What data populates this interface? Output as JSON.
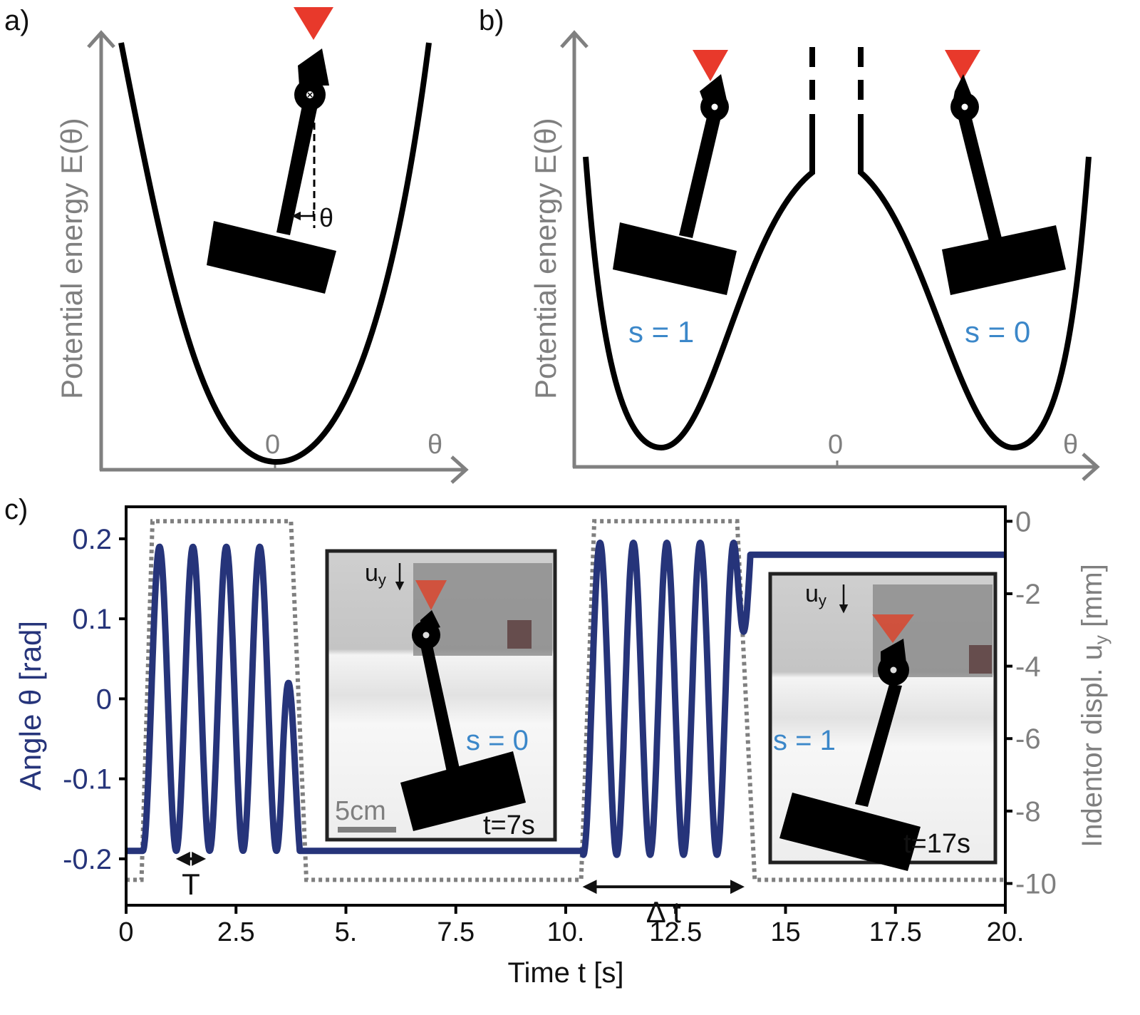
{
  "panels": {
    "a": {
      "label": "a)",
      "ylabel": "Potential energy E(θ)",
      "xlabel": "θ",
      "zero_label": "0",
      "angle_label": "θ"
    },
    "b": {
      "label": "b)",
      "ylabel": "Potential energy E(θ)",
      "xlabel": "θ",
      "zero_label": "0",
      "state_left": "s = 1",
      "state_right": "s = 0"
    },
    "c": {
      "label": "c)"
    }
  },
  "colors": {
    "angle_series": "#26347a",
    "displacement_series": "#7f7f7f",
    "indentor": "#e8392b",
    "state_label": "#3b87c9"
  },
  "chart_data": {
    "type": "line",
    "title": "",
    "xlabel": "Time t [s]",
    "ylabel": "Angle θ [rad]",
    "y2label": "Indentor displ. u_y [mm]",
    "xlim": [
      0,
      20
    ],
    "ylim": [
      -0.258,
      0.24
    ],
    "y2lim": [
      -10.6,
      0.4
    ],
    "x_ticks": [
      "0",
      "2.5",
      "5.",
      "7.5",
      "10.",
      "12.5",
      "15",
      "17.5",
      "20."
    ],
    "x_tick_values": [
      0,
      2.5,
      5,
      7.5,
      10,
      12.5,
      15,
      17.5,
      20
    ],
    "y_ticks": [
      "0.2",
      "0.1",
      "0",
      "-0.1",
      "-0.2"
    ],
    "y_tick_values": [
      0.2,
      0.1,
      0,
      -0.1,
      -0.2
    ],
    "y2_ticks": [
      "0",
      "-2",
      "-4",
      "-6",
      "-8",
      "-10"
    ],
    "y2_tick_values": [
      0,
      -2,
      -4,
      -6,
      -8,
      -10
    ],
    "grid": false,
    "series": [
      {
        "name": "Angle θ",
        "axis": "left",
        "style": "solid",
        "segments": [
          {
            "kind": "constant",
            "t": [
              0,
              0.38
            ],
            "value": -0.19
          },
          {
            "kind": "oscillation",
            "t": [
              0.38,
              3.95
            ],
            "period": 0.76,
            "amplitude": 0.19,
            "start_value": -0.19,
            "end_value": -0.19
          },
          {
            "kind": "constant",
            "t": [
              3.95,
              10.4
            ],
            "value": -0.19
          },
          {
            "kind": "oscillation",
            "t": [
              10.4,
              14.2
            ],
            "period": 0.76,
            "amplitude": 0.195,
            "start_value": -0.19,
            "end_value": 0.18
          },
          {
            "kind": "constant",
            "t": [
              14.2,
              20
            ],
            "value": 0.18
          }
        ],
        "summary": {
          "peak": 0.19,
          "trough": -0.19,
          "stable_s0": -0.19,
          "stable_s1": 0.18
        }
      },
      {
        "name": "Indentor displ. u_y",
        "axis": "right",
        "style": "dotted",
        "segments": [
          {
            "kind": "constant",
            "t": [
              0,
              0.35
            ],
            "value": -9.9
          },
          {
            "kind": "ramp",
            "t": [
              0.35,
              0.6
            ],
            "from": -9.9,
            "to": 0
          },
          {
            "kind": "constant",
            "t": [
              0.6,
              3.75
            ],
            "value": 0
          },
          {
            "kind": "ramp",
            "t": [
              3.75,
              4.1
            ],
            "from": 0,
            "to": -9.9
          },
          {
            "kind": "constant",
            "t": [
              4.1,
              10.35
            ],
            "value": -9.9
          },
          {
            "kind": "ramp",
            "t": [
              10.35,
              10.65
            ],
            "from": -9.9,
            "to": 0
          },
          {
            "kind": "constant",
            "t": [
              10.65,
              13.9
            ],
            "value": 0
          },
          {
            "kind": "ramp",
            "t": [
              13.9,
              14.3
            ],
            "from": 0,
            "to": -9.9
          },
          {
            "kind": "constant",
            "t": [
              14.3,
              20
            ],
            "value": -9.9
          }
        ]
      }
    ],
    "annotations": [
      {
        "text": "T",
        "type": "double-arrow",
        "t": [
          1.1,
          1.85
        ],
        "value": -0.2
      },
      {
        "text": "Δ t",
        "type": "double-arrow",
        "t": [
          10.35,
          14.1
        ],
        "value": -0.235
      }
    ],
    "insets": [
      {
        "state": "s = 0",
        "time": "t=7s",
        "displacement_label": "u",
        "displacement_sub": "y",
        "scale_bar": "5cm"
      },
      {
        "state": "s = 1",
        "time": "t=17s",
        "displacement_label": "u",
        "displacement_sub": "y"
      }
    ]
  }
}
